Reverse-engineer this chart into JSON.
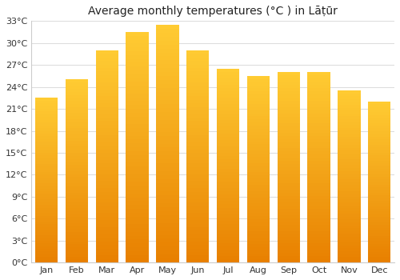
{
  "title": "Average monthly temperatures (°C ) in Lāṭūr",
  "months": [
    "Jan",
    "Feb",
    "Mar",
    "Apr",
    "May",
    "Jun",
    "Jul",
    "Aug",
    "Sep",
    "Oct",
    "Nov",
    "Dec"
  ],
  "temperatures": [
    22.5,
    25.0,
    29.0,
    31.5,
    32.5,
    29.0,
    26.5,
    25.5,
    26.0,
    26.0,
    23.5,
    22.0
  ],
  "ylim": [
    0,
    33
  ],
  "yticks": [
    0,
    3,
    6,
    9,
    12,
    15,
    18,
    21,
    24,
    27,
    30,
    33
  ],
  "bar_color_top": "#FFCC33",
  "bar_color_bottom": "#E88000",
  "background_color": "#ffffff",
  "plot_bg_color": "#ffffff",
  "grid_color": "#dddddd",
  "title_fontsize": 10,
  "tick_fontsize": 8,
  "bar_width": 0.75
}
